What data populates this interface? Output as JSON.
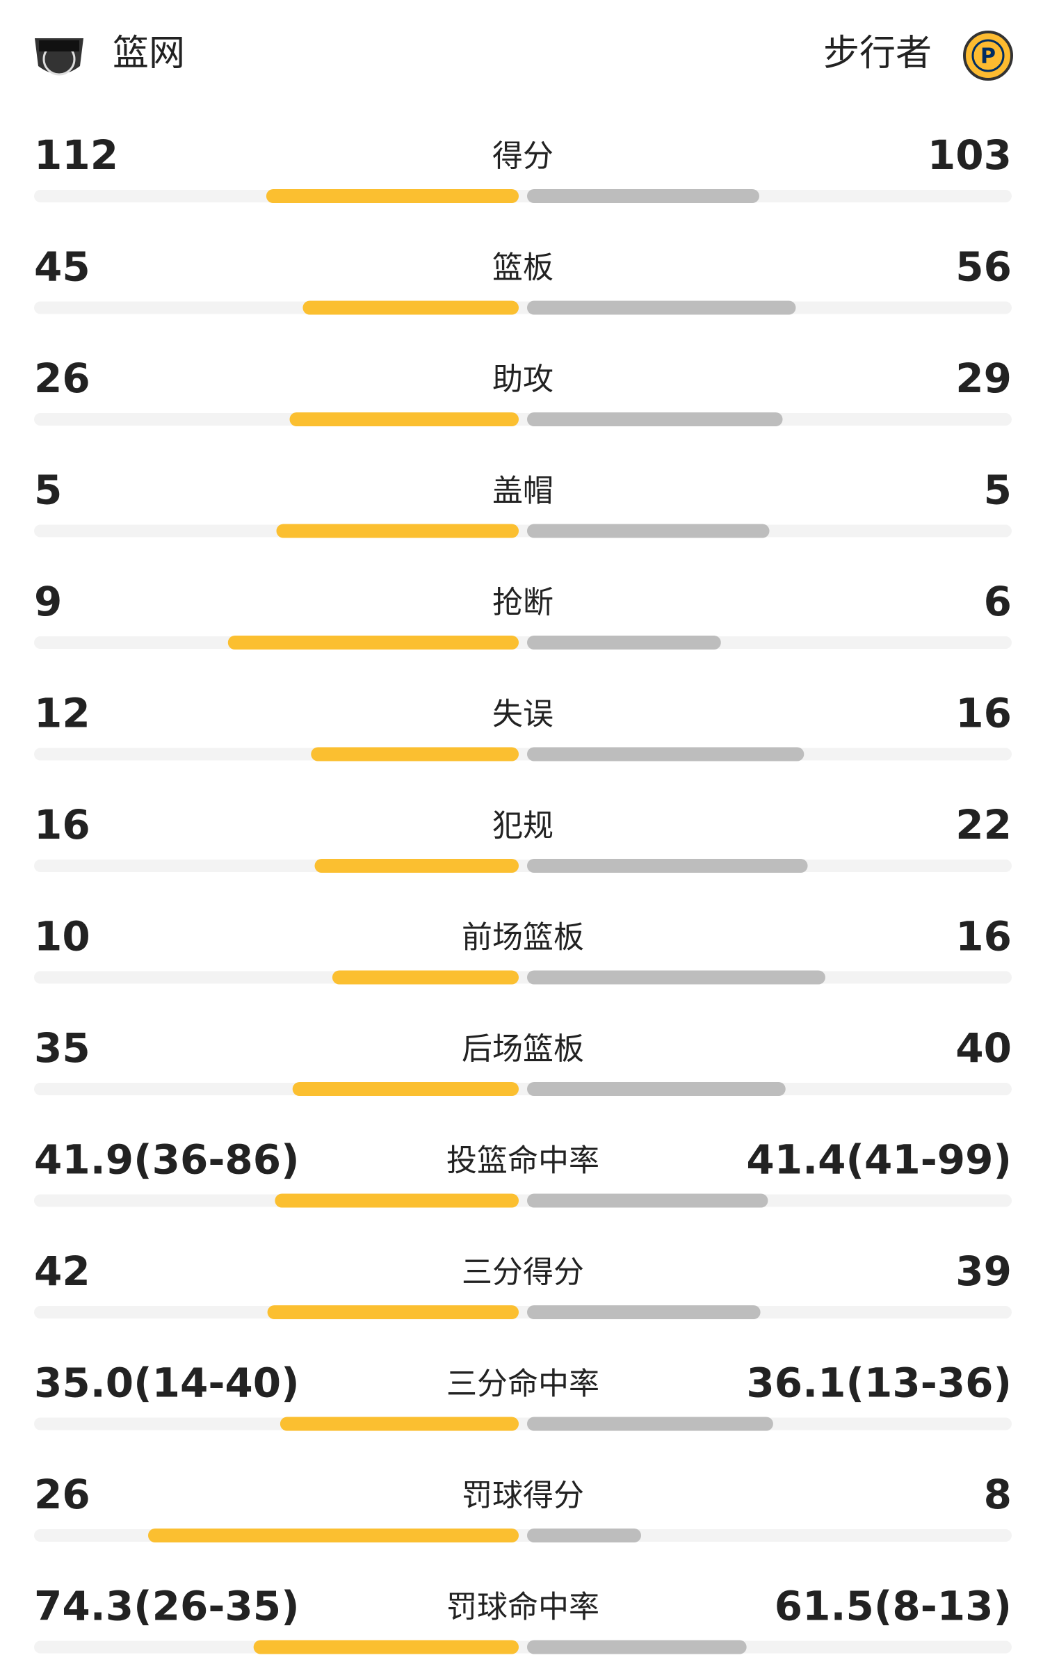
{
  "header": {
    "home": "篮网",
    "away": "步行者"
  },
  "stats": [
    {
      "label": "得分",
      "home": 112,
      "away": 103
    },
    {
      "label": "篮板",
      "home": 45,
      "away": 56
    },
    {
      "label": "助攻",
      "home": 26,
      "away": 29
    },
    {
      "label": "盖帽",
      "home": 5,
      "away": 5
    },
    {
      "label": "抢断",
      "home": 9,
      "away": 6
    },
    {
      "label": "失误",
      "home": 12,
      "away": 16
    },
    {
      "label": "犯规",
      "home": 16,
      "away": 22
    },
    {
      "label": "前场篮板",
      "home": 10,
      "away": 16
    },
    {
      "label": "后场篮板",
      "home": 35,
      "away": 40
    },
    {
      "label": "投篮命中率",
      "home": {
        "value": 41.9,
        "label": "41.9(36-86)"
      },
      "away": {
        "value": 41.4,
        "label": "41.4(41-99)"
      }
    },
    {
      "label": "三分得分",
      "home": 42,
      "away": 39
    },
    {
      "label": "三分命中率",
      "home": {
        "value": 35.0,
        "label": "35.0(14-40)"
      },
      "away": {
        "value": 36.1,
        "label": "36.1(13-36)"
      }
    },
    {
      "label": "罚球得分",
      "home": 26,
      "away": 8
    },
    {
      "label": "罚球命中率",
      "home": {
        "value": 74.3,
        "label": "74.3(26-35)"
      },
      "away": {
        "value": 61.5,
        "label": "61.5(8-13)"
      }
    }
  ]
}
